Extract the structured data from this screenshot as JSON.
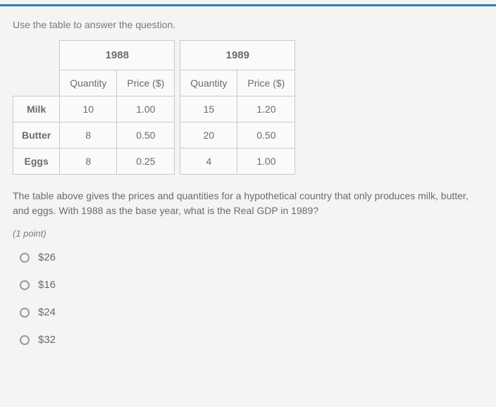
{
  "instruction": "Use the table to answer the question.",
  "table": {
    "years": [
      "1988",
      "1989"
    ],
    "subheaders": [
      "Quantity",
      "Price ($)"
    ],
    "rows": [
      {
        "label": "Milk",
        "y1_qty": "10",
        "y1_price": "1.00",
        "y2_qty": "15",
        "y2_price": "1.20"
      },
      {
        "label": "Butter",
        "y1_qty": "8",
        "y1_price": "0.50",
        "y2_qty": "20",
        "y2_price": "0.50"
      },
      {
        "label": "Eggs",
        "y1_qty": "8",
        "y1_price": "0.25",
        "y2_qty": "4",
        "y2_price": "1.00"
      }
    ]
  },
  "question": "The table above gives the prices and quantities for a hypothetical country that only produces milk, butter, and eggs. With 1988 as the base year, what is the Real GDP in 1989?",
  "points": "(1 point)",
  "options": [
    {
      "label": "$26"
    },
    {
      "label": "$16"
    },
    {
      "label": "$24"
    },
    {
      "label": "$32"
    }
  ],
  "colors": {
    "rule": "#2a7db5",
    "background": "#f5f4f2",
    "border": "#c9c9c9",
    "text": "#6b6b6b"
  }
}
